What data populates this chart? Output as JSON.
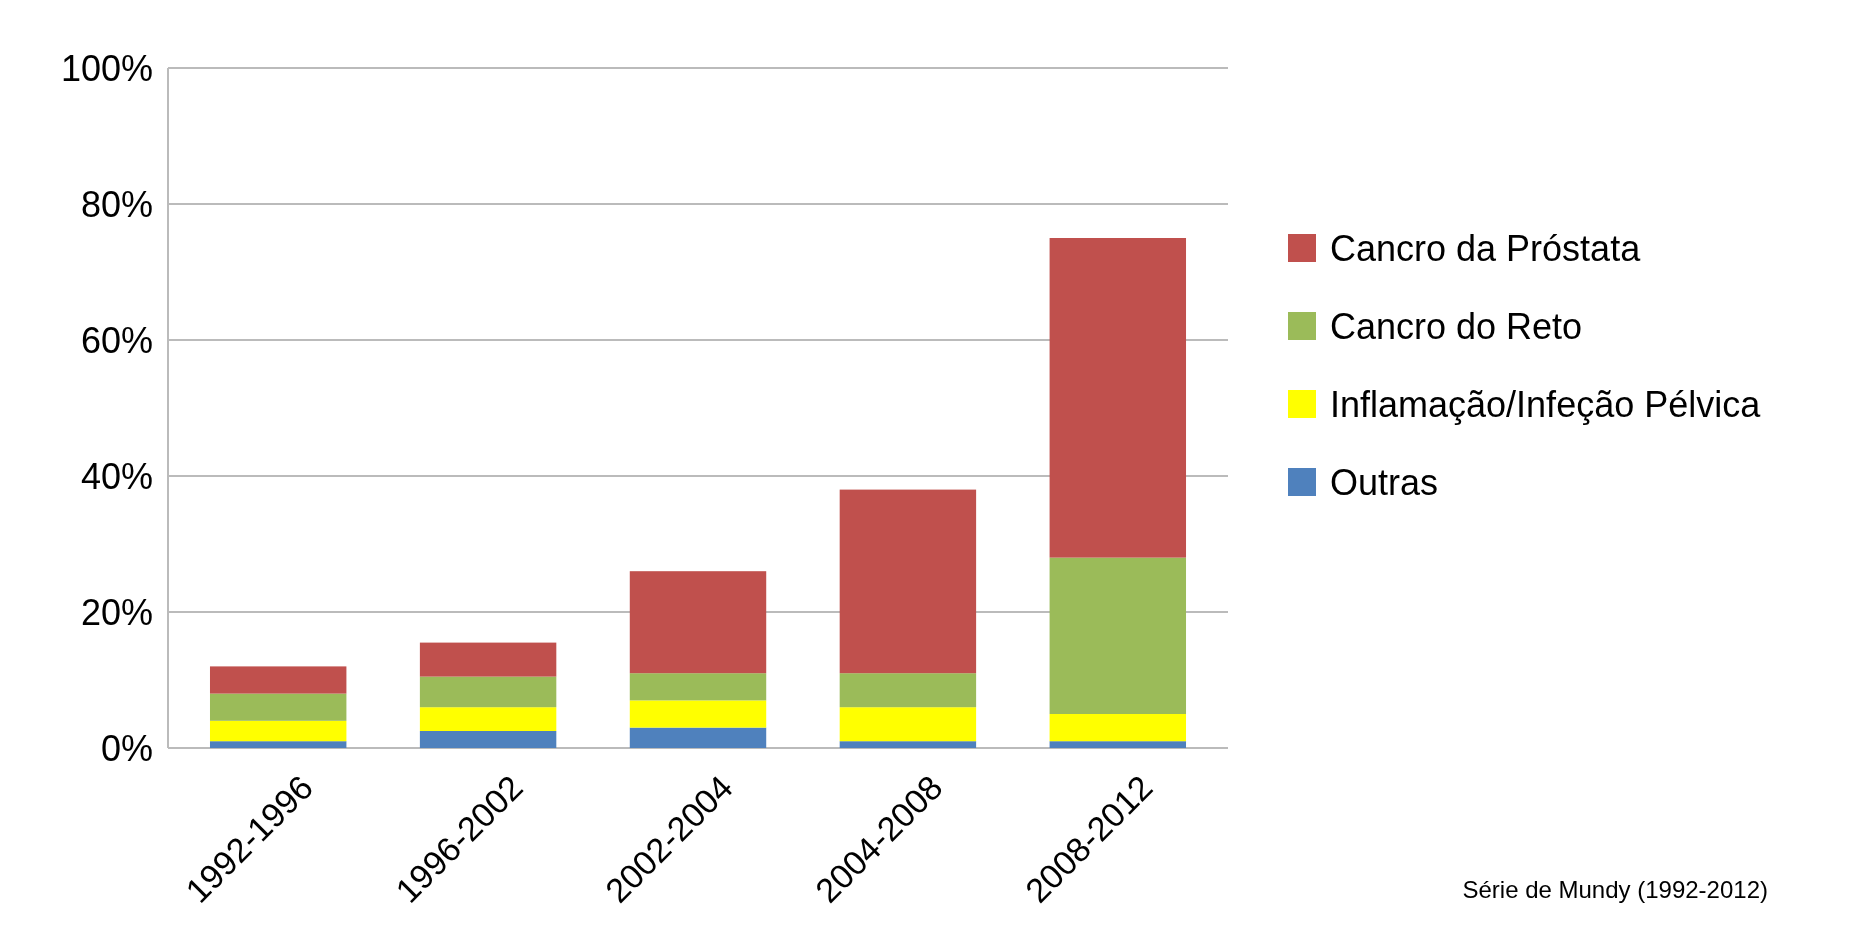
{
  "chart_data": {
    "type": "bar",
    "stacked": true,
    "categories": [
      "1992-1996",
      "1996-2002",
      "2002-2004",
      "2004-2008",
      "2008-2012"
    ],
    "series": [
      {
        "name": "Outras",
        "color": "#4f81bd",
        "values": [
          1,
          2.5,
          3,
          1,
          1
        ]
      },
      {
        "name": "Inflamação/Infeção Pélvica",
        "color": "#ffff00",
        "values": [
          3,
          3.5,
          4,
          5,
          4
        ]
      },
      {
        "name": "Cancro do Reto",
        "color": "#9bbb59",
        "values": [
          4,
          4.5,
          4,
          5,
          23
        ]
      },
      {
        "name": "Cancro da Próstata",
        "color": "#c0504d",
        "values": [
          4,
          5,
          15,
          27,
          47
        ]
      }
    ],
    "ylim": [
      0,
      100
    ],
    "yticks": [
      {
        "value": 0,
        "label": "0%"
      },
      {
        "value": 20,
        "label": "20%"
      },
      {
        "value": 40,
        "label": "40%"
      },
      {
        "value": 60,
        "label": "60%"
      },
      {
        "value": 80,
        "label": "80%"
      },
      {
        "value": 100,
        "label": "100%"
      }
    ],
    "grid": "y",
    "legend": "right",
    "annotations": [
      "Série de Mundy (1992-2012)"
    ]
  }
}
